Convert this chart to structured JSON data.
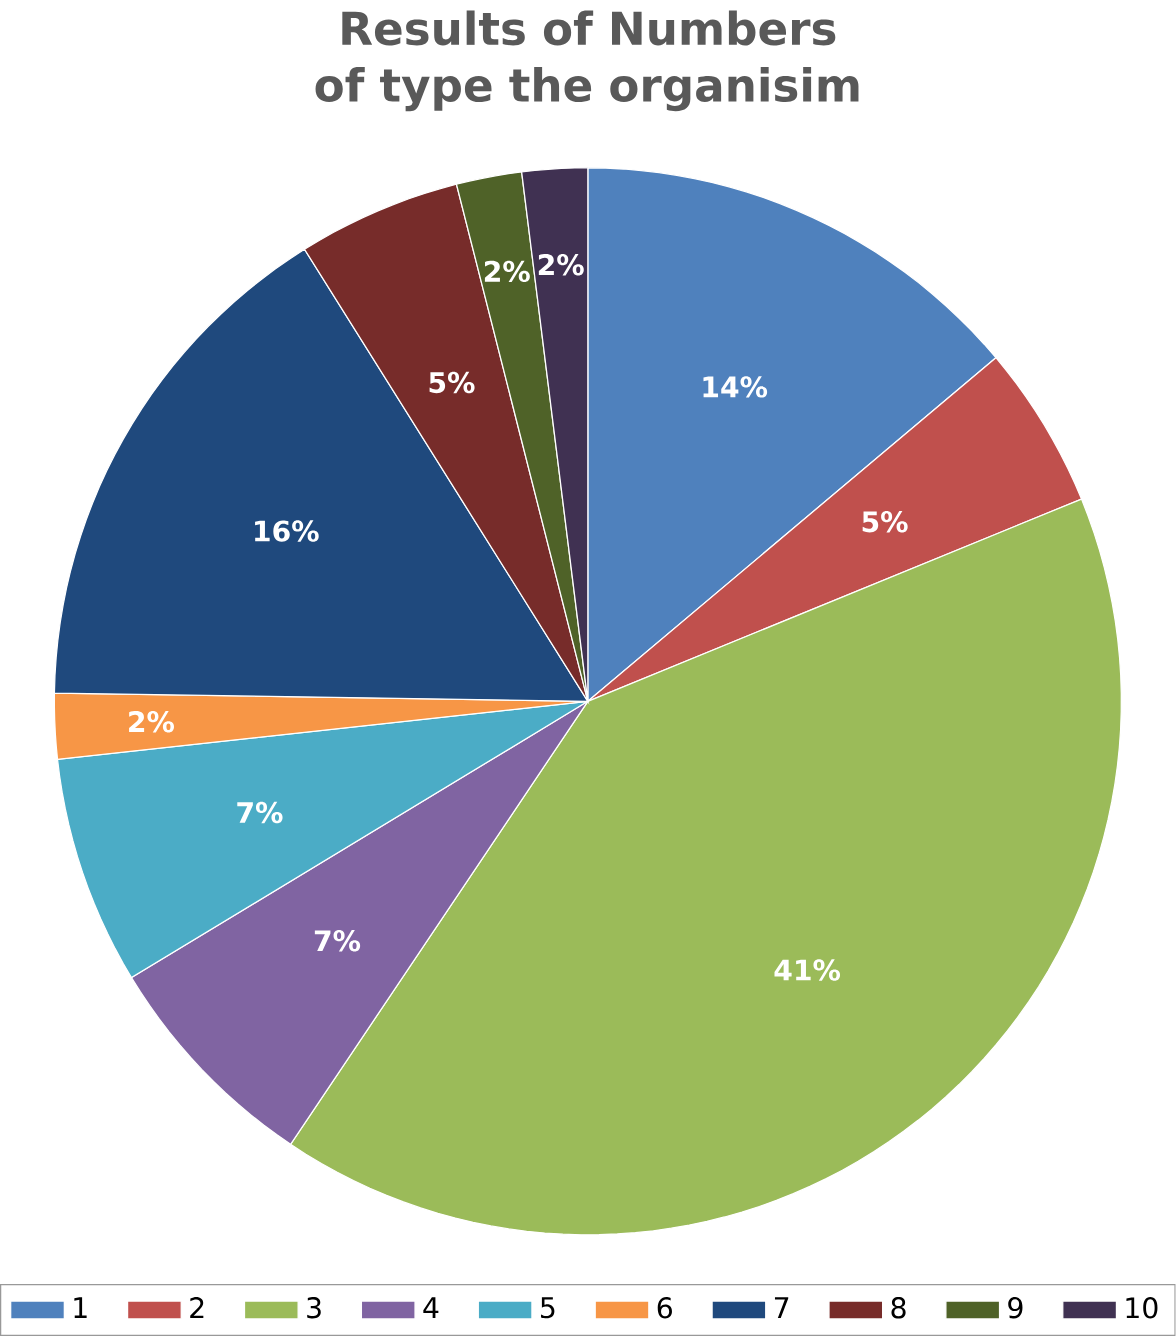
{
  "chart_data": {
    "type": "pie",
    "title": "Results of Numbers of type the organisim",
    "categories": [
      "1",
      "2",
      "3",
      "4",
      "5",
      "6",
      "7",
      "8",
      "9",
      "10"
    ],
    "values": [
      14,
      5,
      41,
      7,
      7,
      2,
      16,
      5,
      2,
      2
    ],
    "value_labels": [
      "14%",
      "5%",
      "41%",
      "7%",
      "7%",
      "2%",
      "16%",
      "5%",
      "2%",
      "2%"
    ],
    "colors": [
      "#4f81bd",
      "#c0504d",
      "#9bbb59",
      "#8064a2",
      "#4bacc6",
      "#f79646",
      "#1f497d",
      "#772c2a",
      "#4f6228",
      "#403152"
    ],
    "legend": "bottom"
  }
}
